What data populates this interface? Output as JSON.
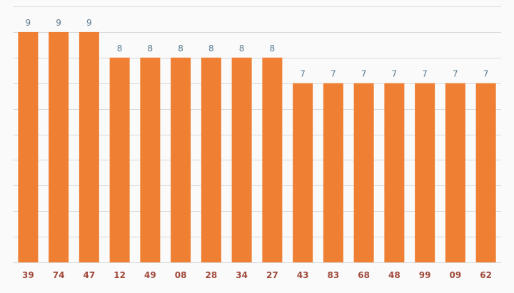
{
  "chart_data": {
    "type": "bar",
    "categories": [
      "39",
      "74",
      "47",
      "12",
      "49",
      "08",
      "28",
      "34",
      "27",
      "43",
      "83",
      "68",
      "48",
      "99",
      "09",
      "62"
    ],
    "values": [
      9,
      9,
      9,
      8,
      8,
      8,
      8,
      8,
      8,
      7,
      7,
      7,
      7,
      7,
      7,
      7
    ],
    "title": "",
    "xlabel": "",
    "ylabel": "",
    "ylim": [
      0,
      10
    ],
    "grid": true,
    "data_labels": true,
    "colors": {
      "bar": "#ee7f33",
      "grid": "#d9d9d9",
      "value_label": "#5b7a8e",
      "category_label": "#a04a3c",
      "background": "#fafafa"
    }
  }
}
